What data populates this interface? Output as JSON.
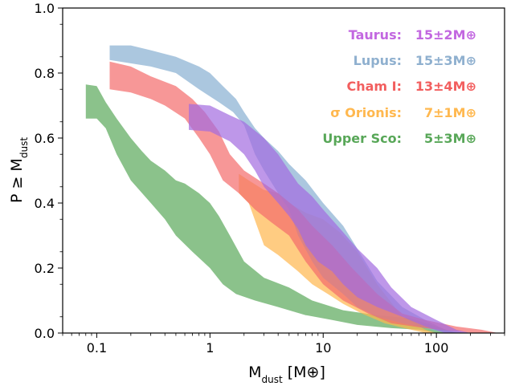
{
  "chart_data": {
    "type": "area",
    "xlabel": "M_dust [M⊕]",
    "ylabel": "P ≥ M_dust",
    "xscale": "log",
    "xlim": [
      0.05,
      400
    ],
    "ylim": [
      0.0,
      1.0
    ],
    "x_ticks": [
      {
        "value": 0.1,
        "label": "0.1"
      },
      {
        "value": 1,
        "label": "1"
      },
      {
        "value": 10,
        "label": "10"
      },
      {
        "value": 100,
        "label": "100"
      }
    ],
    "y_ticks": [
      {
        "value": 0.0,
        "label": "0.0"
      },
      {
        "value": 0.2,
        "label": "0.2"
      },
      {
        "value": 0.4,
        "label": "0.4"
      },
      {
        "value": 0.6,
        "label": "0.6"
      },
      {
        "value": 0.8,
        "label": "0.8"
      },
      {
        "value": 1.0,
        "label": "1.0"
      }
    ],
    "legend_placement": "top-right",
    "series": [
      {
        "name": "Upper Sco",
        "value_label": "5±3M⊕",
        "color": "#5aa85a",
        "upper": [
          [
            0.08,
            0.765
          ],
          [
            0.1,
            0.76
          ],
          [
            0.12,
            0.71
          ],
          [
            0.15,
            0.66
          ],
          [
            0.2,
            0.6
          ],
          [
            0.25,
            0.56
          ],
          [
            0.3,
            0.53
          ],
          [
            0.4,
            0.5
          ],
          [
            0.5,
            0.47
          ],
          [
            0.6,
            0.46
          ],
          [
            0.8,
            0.43
          ],
          [
            1.0,
            0.4
          ],
          [
            1.2,
            0.36
          ],
          [
            1.5,
            0.3
          ],
          [
            2.0,
            0.22
          ],
          [
            3.0,
            0.17
          ],
          [
            5.0,
            0.14
          ],
          [
            8.0,
            0.1
          ],
          [
            15,
            0.07
          ],
          [
            30,
            0.055
          ],
          [
            60,
            0.045
          ],
          [
            100,
            0.02
          ],
          [
            150,
            0.0
          ]
        ],
        "lower": [
          [
            0.08,
            0.66
          ],
          [
            0.1,
            0.66
          ],
          [
            0.12,
            0.63
          ],
          [
            0.15,
            0.55
          ],
          [
            0.2,
            0.47
          ],
          [
            0.3,
            0.4
          ],
          [
            0.4,
            0.35
          ],
          [
            0.5,
            0.3
          ],
          [
            0.7,
            0.25
          ],
          [
            1.0,
            0.2
          ],
          [
            1.3,
            0.15
          ],
          [
            1.7,
            0.12
          ],
          [
            2.5,
            0.1
          ],
          [
            4,
            0.08
          ],
          [
            7,
            0.055
          ],
          [
            12,
            0.04
          ],
          [
            20,
            0.025
          ],
          [
            40,
            0.015
          ],
          [
            70,
            0.01
          ],
          [
            100,
            0.0
          ]
        ]
      },
      {
        "name": "σ Orionis",
        "value_label": "7±1M⊕",
        "color": "#ffb74d",
        "upper": [
          [
            1.8,
            0.49
          ],
          [
            2.2,
            0.47
          ],
          [
            3,
            0.44
          ],
          [
            4,
            0.43
          ],
          [
            5,
            0.4
          ],
          [
            7,
            0.37
          ],
          [
            10,
            0.35
          ],
          [
            14,
            0.31
          ],
          [
            20,
            0.25
          ],
          [
            30,
            0.15
          ],
          [
            50,
            0.05
          ],
          [
            80,
            0.01
          ],
          [
            100,
            0.0
          ]
        ],
        "lower": [
          [
            1.8,
            0.43
          ],
          [
            2.2,
            0.4
          ],
          [
            2.6,
            0.33
          ],
          [
            3,
            0.27
          ],
          [
            4,
            0.24
          ],
          [
            6,
            0.19
          ],
          [
            8,
            0.15
          ],
          [
            11,
            0.12
          ],
          [
            15,
            0.09
          ],
          [
            22,
            0.06
          ],
          [
            35,
            0.03
          ],
          [
            60,
            0.01
          ],
          [
            80,
            0.0
          ]
        ]
      },
      {
        "name": "Lupus",
        "value_label": "15±3M⊕",
        "color": "#87afd1",
        "upper": [
          [
            0.13,
            0.885
          ],
          [
            0.2,
            0.885
          ],
          [
            0.3,
            0.87
          ],
          [
            0.5,
            0.85
          ],
          [
            0.8,
            0.82
          ],
          [
            1.0,
            0.8
          ],
          [
            1.3,
            0.76
          ],
          [
            1.7,
            0.72
          ],
          [
            2,
            0.68
          ],
          [
            2.5,
            0.63
          ],
          [
            3,
            0.6
          ],
          [
            4,
            0.56
          ],
          [
            5,
            0.52
          ],
          [
            7,
            0.47
          ],
          [
            10,
            0.4
          ],
          [
            15,
            0.33
          ],
          [
            20,
            0.26
          ],
          [
            30,
            0.16
          ],
          [
            50,
            0.08
          ],
          [
            80,
            0.04
          ],
          [
            120,
            0.01
          ],
          [
            180,
            0.0
          ]
        ],
        "lower": [
          [
            0.13,
            0.84
          ],
          [
            0.3,
            0.82
          ],
          [
            0.5,
            0.8
          ],
          [
            0.8,
            0.75
          ],
          [
            1.2,
            0.71
          ],
          [
            1.6,
            0.68
          ],
          [
            2,
            0.64
          ],
          [
            2.5,
            0.55
          ],
          [
            3,
            0.5
          ],
          [
            4,
            0.43
          ],
          [
            5,
            0.38
          ],
          [
            6,
            0.3
          ],
          [
            8,
            0.22
          ],
          [
            10,
            0.17
          ],
          [
            15,
            0.12
          ],
          [
            20,
            0.08
          ],
          [
            30,
            0.05
          ],
          [
            50,
            0.03
          ],
          [
            80,
            0.015
          ],
          [
            120,
            0.0
          ]
        ]
      },
      {
        "name": "Cham I",
        "value_label": "13±4M⊕",
        "color": "#f46b6b",
        "upper": [
          [
            0.13,
            0.835
          ],
          [
            0.2,
            0.82
          ],
          [
            0.3,
            0.79
          ],
          [
            0.5,
            0.76
          ],
          [
            0.7,
            0.72
          ],
          [
            0.9,
            0.68
          ],
          [
            1.2,
            0.62
          ],
          [
            1.5,
            0.55
          ],
          [
            2,
            0.5
          ],
          [
            3,
            0.46
          ],
          [
            4,
            0.43
          ],
          [
            6,
            0.38
          ],
          [
            8,
            0.33
          ],
          [
            12,
            0.27
          ],
          [
            18,
            0.2
          ],
          [
            30,
            0.12
          ],
          [
            50,
            0.06
          ],
          [
            80,
            0.04
          ],
          [
            150,
            0.02
          ],
          [
            250,
            0.01
          ],
          [
            350,
            0.0
          ]
        ],
        "lower": [
          [
            0.13,
            0.75
          ],
          [
            0.2,
            0.74
          ],
          [
            0.3,
            0.72
          ],
          [
            0.4,
            0.7
          ],
          [
            0.6,
            0.66
          ],
          [
            0.8,
            0.6
          ],
          [
            1.0,
            0.55
          ],
          [
            1.3,
            0.47
          ],
          [
            1.8,
            0.43
          ],
          [
            2.5,
            0.38
          ],
          [
            3.5,
            0.34
          ],
          [
            5,
            0.3
          ],
          [
            7,
            0.22
          ],
          [
            10,
            0.15
          ],
          [
            15,
            0.1
          ],
          [
            25,
            0.06
          ],
          [
            40,
            0.03
          ],
          [
            80,
            0.015
          ],
          [
            150,
            0.005
          ],
          [
            220,
            0.0
          ]
        ]
      },
      {
        "name": "Taurus",
        "value_label": "15±2M⊕",
        "color": "#a36be0",
        "upper": [
          [
            0.65,
            0.705
          ],
          [
            1.0,
            0.7
          ],
          [
            1.5,
            0.67
          ],
          [
            2,
            0.65
          ],
          [
            3,
            0.6
          ],
          [
            4,
            0.55
          ],
          [
            5,
            0.5
          ],
          [
            6,
            0.46
          ],
          [
            8,
            0.42
          ],
          [
            10,
            0.38
          ],
          [
            15,
            0.31
          ],
          [
            20,
            0.26
          ],
          [
            30,
            0.2
          ],
          [
            40,
            0.14
          ],
          [
            60,
            0.08
          ],
          [
            100,
            0.04
          ],
          [
            150,
            0.01
          ],
          [
            200,
            0.0
          ]
        ],
        "lower": [
          [
            0.65,
            0.625
          ],
          [
            1.0,
            0.62
          ],
          [
            1.5,
            0.59
          ],
          [
            2,
            0.55
          ],
          [
            2.5,
            0.5
          ],
          [
            3,
            0.45
          ],
          [
            4,
            0.4
          ],
          [
            5,
            0.36
          ],
          [
            6,
            0.32
          ],
          [
            7,
            0.27
          ],
          [
            9,
            0.22
          ],
          [
            12,
            0.19
          ],
          [
            15,
            0.15
          ],
          [
            20,
            0.11
          ],
          [
            30,
            0.08
          ],
          [
            50,
            0.05
          ],
          [
            80,
            0.02
          ],
          [
            120,
            0.0
          ]
        ]
      }
    ],
    "legend": [
      {
        "name": "Taurus",
        "value_label": "15±2M⊕",
        "color": "#c267e0"
      },
      {
        "name": "Lupus",
        "value_label": "15±3M⊕",
        "color": "#8fb0cf"
      },
      {
        "name": "Cham I",
        "value_label": "13±4M⊕",
        "color": "#f25e5e"
      },
      {
        "name": "σ Orionis",
        "value_label": "7±1M⊕",
        "color": "#ffb84f"
      },
      {
        "name": "Upper Sco",
        "value_label": "5±3M⊕",
        "color": "#58a758"
      }
    ]
  }
}
